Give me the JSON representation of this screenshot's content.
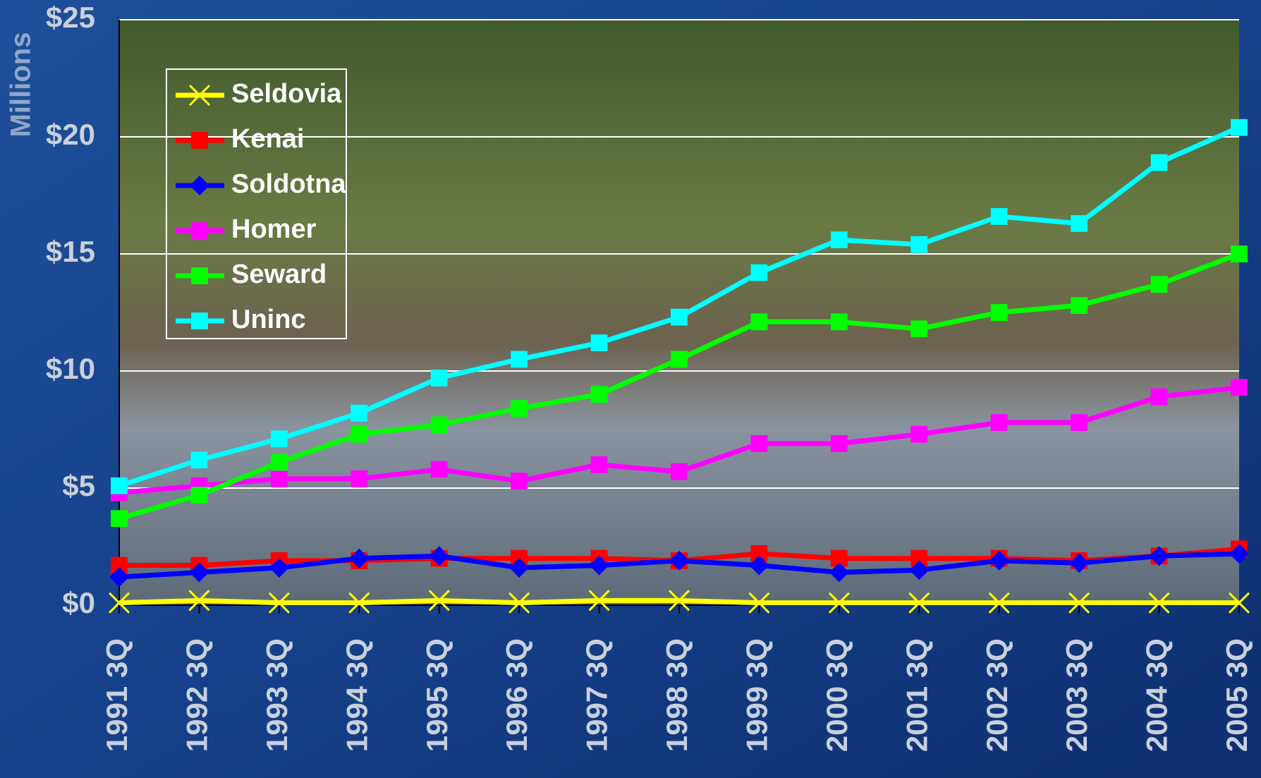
{
  "chart_data": {
    "type": "line",
    "y_label": "Millions",
    "categories": [
      "1991 3Q",
      "1992 3Q",
      "1993 3Q",
      "1994 3Q",
      "1995 3Q",
      "1996 3Q",
      "1997 3Q",
      "1998 3Q",
      "1999 3Q",
      "2000 3Q",
      "2001 3Q",
      "2002 3Q",
      "2003 3Q",
      "2004 3Q",
      "2005 3Q"
    ],
    "ylim": [
      0,
      25
    ],
    "yticks": [
      {
        "value": 0,
        "label": "$0"
      },
      {
        "value": 5,
        "label": "$5"
      },
      {
        "value": 10,
        "label": "$10"
      },
      {
        "value": 15,
        "label": "$15"
      },
      {
        "value": 20,
        "label": "$20"
      },
      {
        "value": 25,
        "label": "$25"
      }
    ],
    "grid": true,
    "series": [
      {
        "name": "Seldovia",
        "color": "#ffff00",
        "marker": "x",
        "values": [
          0.1,
          0.2,
          0.1,
          0.1,
          0.2,
          0.1,
          0.2,
          0.2,
          0.1,
          0.1,
          0.1,
          0.1,
          0.1,
          0.1,
          0.1
        ]
      },
      {
        "name": "Kenai",
        "color": "#ff0000",
        "marker": "square",
        "values": [
          1.7,
          1.7,
          1.9,
          1.9,
          2.0,
          2.0,
          2.0,
          1.9,
          2.2,
          2.0,
          2.0,
          2.0,
          1.9,
          2.1,
          2.4
        ]
      },
      {
        "name": "Soldotna",
        "color": "#0000ff",
        "marker": "diamond",
        "values": [
          1.2,
          1.4,
          1.6,
          2.0,
          2.1,
          1.6,
          1.7,
          1.9,
          1.7,
          1.4,
          1.5,
          1.9,
          1.8,
          2.1,
          2.2
        ]
      },
      {
        "name": "Homer",
        "color": "#ff00ff",
        "marker": "square",
        "values": [
          4.8,
          5.1,
          5.4,
          5.4,
          5.8,
          5.3,
          6.0,
          5.7,
          6.9,
          6.9,
          7.3,
          7.8,
          7.8,
          8.9,
          9.3
        ]
      },
      {
        "name": "Seward",
        "color": "#00ff00",
        "marker": "square",
        "values": [
          3.7,
          4.7,
          6.1,
          7.3,
          7.7,
          8.4,
          9.0,
          10.5,
          12.1,
          12.1,
          11.8,
          12.5,
          12.8,
          13.7,
          15.0
        ]
      },
      {
        "name": "Uninc",
        "color": "#00ffff",
        "marker": "square",
        "values": [
          5.1,
          6.2,
          7.1,
          8.2,
          9.7,
          10.5,
          11.2,
          12.3,
          14.2,
          15.6,
          15.4,
          16.6,
          16.3,
          18.9,
          20.4
        ]
      }
    ]
  }
}
